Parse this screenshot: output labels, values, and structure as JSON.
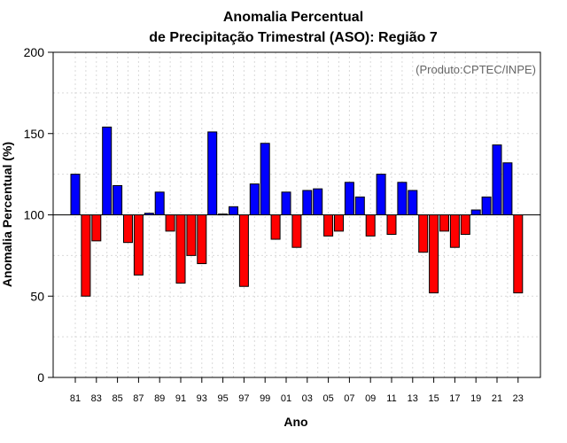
{
  "chart_data": {
    "type": "bar",
    "title_line1": "Anomalia Percentual",
    "title_line2": "de Precipitação Trimestral (ASO): Região 7",
    "xlabel": "Ano",
    "ylabel": "Anomalia Percentual (%)",
    "credit": "(Produto:CPTEC/INPE)",
    "baseline": 100,
    "ylim": [
      0,
      200
    ],
    "yticks": [
      0,
      50,
      100,
      150,
      200
    ],
    "grid": true,
    "categories": [
      "81",
      "82",
      "83",
      "84",
      "85",
      "86",
      "87",
      "88",
      "89",
      "90",
      "91",
      "92",
      "93",
      "94",
      "95",
      "96",
      "97",
      "98",
      "99",
      "00",
      "01",
      "02",
      "03",
      "04",
      "05",
      "06",
      "07",
      "08",
      "09",
      "10",
      "11",
      "12",
      "13",
      "14",
      "15",
      "16",
      "17",
      "18",
      "19",
      "20",
      "21",
      "22",
      "23"
    ],
    "xtick_labels": [
      "81",
      "83",
      "85",
      "87",
      "89",
      "91",
      "93",
      "95",
      "97",
      "99",
      "01",
      "03",
      "05",
      "07",
      "09",
      "11",
      "13",
      "15",
      "17",
      "19",
      "21",
      "23"
    ],
    "values": [
      125,
      50,
      84,
      154,
      118,
      83,
      63,
      101,
      114,
      90,
      58,
      75,
      70,
      151,
      100.5,
      105,
      56,
      119,
      144,
      85,
      114,
      80,
      115,
      116,
      87,
      90,
      120,
      111,
      87,
      125,
      88,
      120,
      115,
      77,
      52,
      90,
      80,
      88,
      103,
      111,
      143,
      132,
      52
    ],
    "colors": {
      "above": "#0000ff",
      "below": "#ff0000",
      "outline": "#000000"
    }
  }
}
